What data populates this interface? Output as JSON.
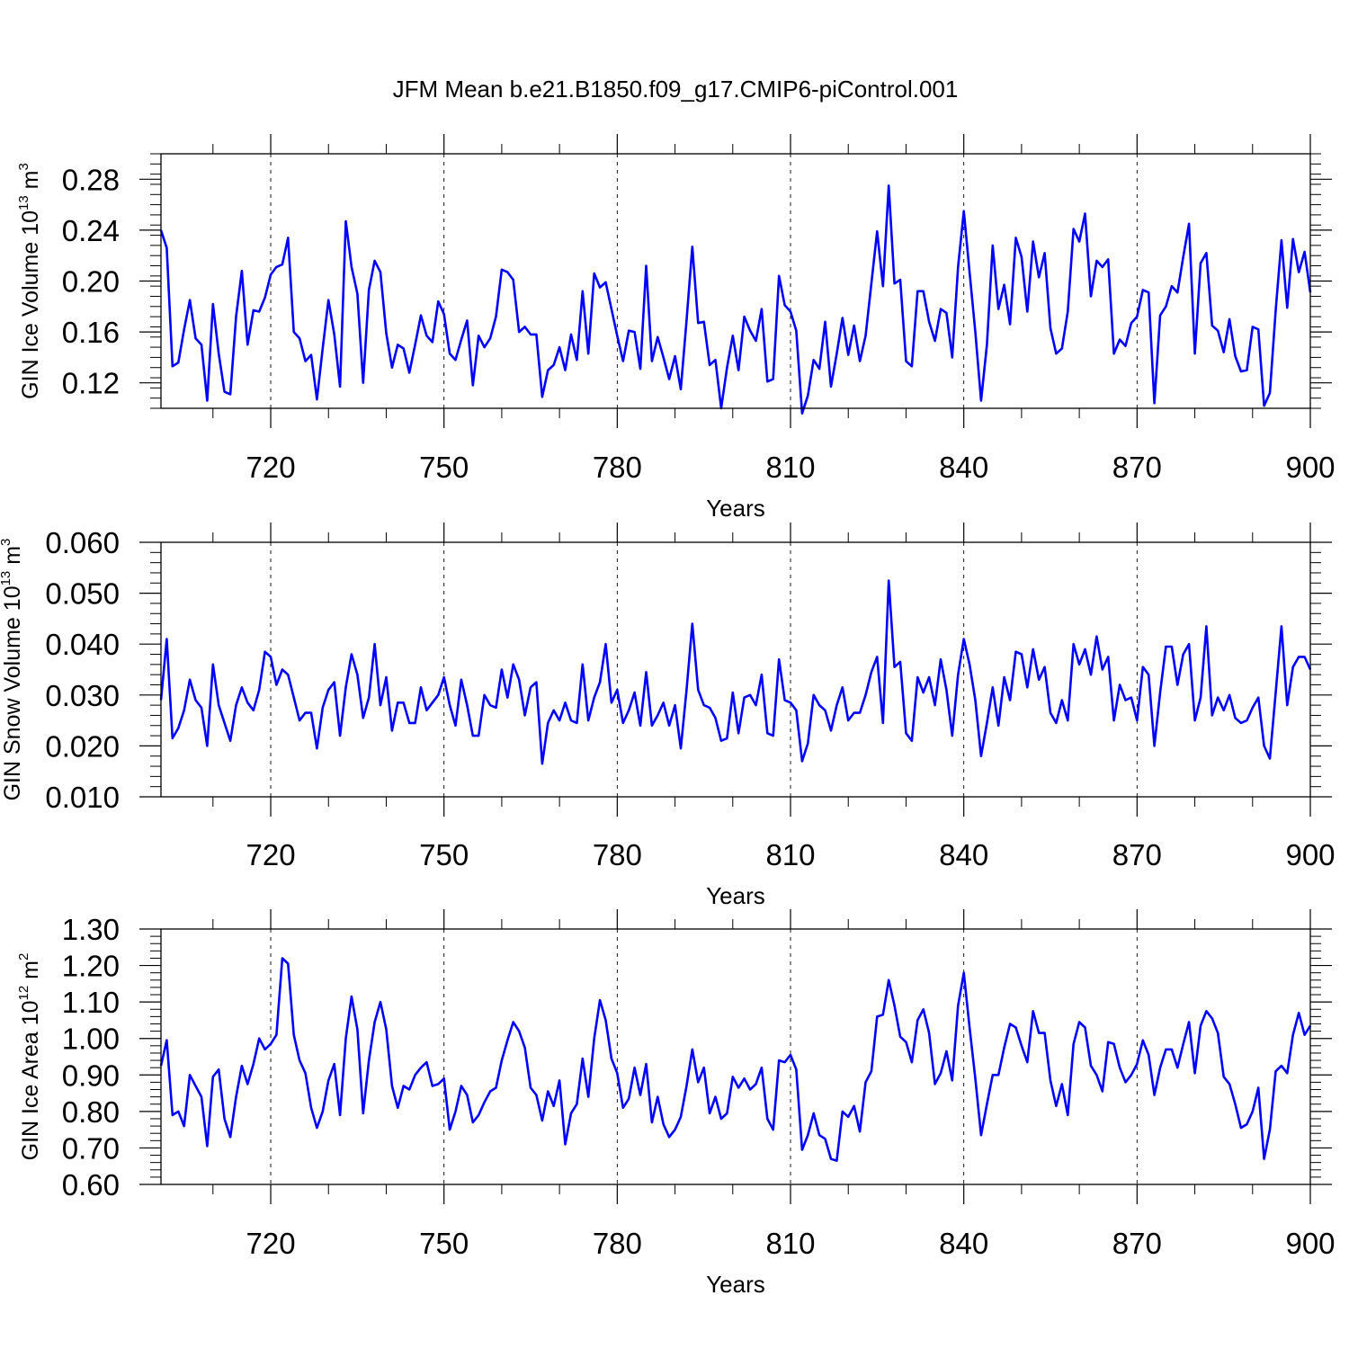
{
  "title": "JFM Mean b.e21.B1850.f09_g17.CMIP6-piControl.001",
  "chart_data": [
    {
      "type": "line",
      "ylabel": {
        "main": "GIN Ice Volume 10",
        "sup": "13",
        "unit": " m",
        "unit_sup": "3"
      },
      "xlabel": "Years",
      "xlim": [
        701,
        900
      ],
      "ylim": [
        0.1,
        0.3
      ],
      "xticks": [
        720,
        750,
        780,
        810,
        840,
        870,
        900
      ],
      "xtick_labels": [
        "720",
        "750",
        "780",
        "810",
        "840",
        "870",
        "900"
      ],
      "yticks": [
        0.12,
        0.16,
        0.2,
        0.24,
        0.28
      ],
      "ytick_labels": [
        "0.12",
        "0.16",
        "0.20",
        "0.24",
        "0.28"
      ],
      "color": "#0000ff",
      "x_start": 701,
      "values": [
        0.24,
        0.226,
        0.133,
        0.136,
        0.162,
        0.185,
        0.155,
        0.15,
        0.106,
        0.182,
        0.143,
        0.113,
        0.111,
        0.172,
        0.208,
        0.15,
        0.177,
        0.176,
        0.187,
        0.205,
        0.211,
        0.213,
        0.234,
        0.16,
        0.155,
        0.137,
        0.142,
        0.107,
        0.147,
        0.185,
        0.158,
        0.117,
        0.247,
        0.211,
        0.19,
        0.12,
        0.193,
        0.216,
        0.207,
        0.159,
        0.132,
        0.15,
        0.147,
        0.128,
        0.15,
        0.173,
        0.157,
        0.152,
        0.184,
        0.174,
        0.143,
        0.138,
        0.154,
        0.169,
        0.118,
        0.157,
        0.148,
        0.155,
        0.172,
        0.209,
        0.207,
        0.201,
        0.16,
        0.164,
        0.158,
        0.158,
        0.109,
        0.13,
        0.134,
        0.148,
        0.13,
        0.158,
        0.138,
        0.192,
        0.143,
        0.206,
        0.195,
        0.199,
        0.178,
        0.157,
        0.137,
        0.161,
        0.16,
        0.131,
        0.212,
        0.137,
        0.156,
        0.14,
        0.123,
        0.141,
        0.115,
        0.169,
        0.227,
        0.167,
        0.168,
        0.134,
        0.138,
        0.1,
        0.132,
        0.157,
        0.13,
        0.172,
        0.161,
        0.153,
        0.178,
        0.121,
        0.123,
        0.204,
        0.181,
        0.176,
        0.161,
        0.096,
        0.11,
        0.138,
        0.131,
        0.168,
        0.117,
        0.143,
        0.171,
        0.142,
        0.165,
        0.137,
        0.157,
        0.198,
        0.239,
        0.196,
        0.275,
        0.198,
        0.201,
        0.137,
        0.133,
        0.192,
        0.192,
        0.168,
        0.153,
        0.178,
        0.175,
        0.14,
        0.211,
        0.255,
        0.207,
        0.16,
        0.106,
        0.15,
        0.228,
        0.178,
        0.197,
        0.166,
        0.234,
        0.219,
        0.176,
        0.231,
        0.203,
        0.222,
        0.163,
        0.143,
        0.147,
        0.176,
        0.241,
        0.231,
        0.253,
        0.188,
        0.216,
        0.211,
        0.217,
        0.143,
        0.154,
        0.149,
        0.167,
        0.172,
        0.193,
        0.191,
        0.104,
        0.173,
        0.18,
        0.196,
        0.191,
        0.219,
        0.245,
        0.143,
        0.214,
        0.222,
        0.165,
        0.161,
        0.144,
        0.17,
        0.141,
        0.129,
        0.13,
        0.164,
        0.162,
        0.102,
        0.112,
        0.177,
        0.232,
        0.179,
        0.233,
        0.207,
        0.223,
        0.191
      ]
    },
    {
      "type": "line",
      "ylabel": {
        "main": "GIN Snow Volume 10",
        "sup": "13",
        "unit": " m",
        "unit_sup": "3"
      },
      "xlabel": "Years",
      "xlim": [
        701,
        900
      ],
      "ylim": [
        0.01,
        0.06
      ],
      "xticks": [
        720,
        750,
        780,
        810,
        840,
        870,
        900
      ],
      "xtick_labels": [
        "720",
        "750",
        "780",
        "810",
        "840",
        "870",
        "900"
      ],
      "yticks": [
        0.01,
        0.02,
        0.03,
        0.04,
        0.05,
        0.06
      ],
      "ytick_labels": [
        "0.010",
        "0.020",
        "0.030",
        "0.040",
        "0.050",
        "0.060"
      ],
      "color": "#0000ff",
      "x_start": 701,
      "values": [
        0.029,
        0.041,
        0.0215,
        0.0235,
        0.027,
        0.033,
        0.029,
        0.0275,
        0.02,
        0.036,
        0.028,
        0.0245,
        0.021,
        0.028,
        0.0315,
        0.0285,
        0.027,
        0.031,
        0.0385,
        0.0375,
        0.032,
        0.035,
        0.034,
        0.0295,
        0.025,
        0.0265,
        0.0265,
        0.0195,
        0.0275,
        0.031,
        0.0325,
        0.022,
        0.0315,
        0.038,
        0.034,
        0.0255,
        0.0295,
        0.04,
        0.028,
        0.0335,
        0.023,
        0.0285,
        0.0285,
        0.0245,
        0.0245,
        0.0315,
        0.027,
        0.0285,
        0.03,
        0.0335,
        0.028,
        0.024,
        0.033,
        0.028,
        0.022,
        0.022,
        0.03,
        0.028,
        0.0275,
        0.035,
        0.0295,
        0.036,
        0.033,
        0.026,
        0.0315,
        0.0325,
        0.0165,
        0.0245,
        0.027,
        0.025,
        0.0285,
        0.025,
        0.0245,
        0.036,
        0.025,
        0.0295,
        0.0325,
        0.04,
        0.0285,
        0.031,
        0.0245,
        0.027,
        0.0305,
        0.024,
        0.0345,
        0.024,
        0.026,
        0.0285,
        0.024,
        0.028,
        0.0195,
        0.031,
        0.044,
        0.031,
        0.028,
        0.0275,
        0.0255,
        0.021,
        0.0215,
        0.0305,
        0.0225,
        0.0295,
        0.03,
        0.028,
        0.034,
        0.0225,
        0.022,
        0.037,
        0.029,
        0.0285,
        0.027,
        0.017,
        0.0205,
        0.03,
        0.028,
        0.027,
        0.023,
        0.028,
        0.0315,
        0.025,
        0.0265,
        0.0265,
        0.03,
        0.0345,
        0.0375,
        0.0245,
        0.0525,
        0.0355,
        0.0365,
        0.0225,
        0.021,
        0.0335,
        0.0305,
        0.0335,
        0.028,
        0.037,
        0.031,
        0.022,
        0.034,
        0.041,
        0.036,
        0.029,
        0.018,
        0.0245,
        0.0315,
        0.024,
        0.0335,
        0.029,
        0.0385,
        0.038,
        0.0315,
        0.039,
        0.033,
        0.0355,
        0.0265,
        0.0245,
        0.029,
        0.025,
        0.04,
        0.036,
        0.039,
        0.034,
        0.0415,
        0.035,
        0.0375,
        0.025,
        0.032,
        0.029,
        0.0295,
        0.025,
        0.0355,
        0.034,
        0.02,
        0.0305,
        0.0395,
        0.0395,
        0.032,
        0.038,
        0.04,
        0.025,
        0.0295,
        0.0435,
        0.026,
        0.0295,
        0.027,
        0.03,
        0.0255,
        0.0245,
        0.025,
        0.0275,
        0.0295,
        0.02,
        0.0175,
        0.0305,
        0.0435,
        0.028,
        0.0355,
        0.0375,
        0.0375,
        0.035
      ]
    },
    {
      "type": "line",
      "ylabel": {
        "main": "GIN Ice Area 10",
        "sup": "12",
        "unit": " m",
        "unit_sup": "2"
      },
      "xlabel": "Years",
      "xlim": [
        701,
        900
      ],
      "ylim": [
        0.6,
        1.3
      ],
      "xticks": [
        720,
        750,
        780,
        810,
        840,
        870,
        900
      ],
      "xtick_labels": [
        "720",
        "750",
        "780",
        "810",
        "840",
        "870",
        "900"
      ],
      "yticks": [
        0.6,
        0.7,
        0.8,
        0.9,
        1.0,
        1.1,
        1.2,
        1.3
      ],
      "ytick_labels": [
        "0.60",
        "0.70",
        "0.80",
        "0.90",
        "1.00",
        "1.10",
        "1.20",
        "1.30"
      ],
      "color": "#0000ff",
      "x_start": 701,
      "values": [
        0.925,
        0.995,
        0.79,
        0.8,
        0.76,
        0.9,
        0.87,
        0.84,
        0.705,
        0.895,
        0.915,
        0.78,
        0.73,
        0.84,
        0.925,
        0.875,
        0.93,
        1.0,
        0.97,
        0.985,
        1.01,
        1.22,
        1.205,
        1.01,
        0.94,
        0.905,
        0.81,
        0.755,
        0.8,
        0.885,
        0.93,
        0.79,
        1.0,
        1.115,
        1.025,
        0.795,
        0.94,
        1.045,
        1.1,
        1.025,
        0.87,
        0.81,
        0.87,
        0.86,
        0.9,
        0.92,
        0.935,
        0.87,
        0.875,
        0.89,
        0.75,
        0.8,
        0.87,
        0.845,
        0.77,
        0.79,
        0.825,
        0.855,
        0.865,
        0.94,
        0.995,
        1.045,
        1.02,
        0.975,
        0.865,
        0.845,
        0.775,
        0.855,
        0.815,
        0.885,
        0.71,
        0.795,
        0.82,
        0.945,
        0.84,
        1.0,
        1.105,
        1.05,
        0.945,
        0.905,
        0.81,
        0.835,
        0.92,
        0.845,
        0.93,
        0.77,
        0.84,
        0.765,
        0.73,
        0.75,
        0.785,
        0.87,
        0.97,
        0.88,
        0.92,
        0.795,
        0.84,
        0.78,
        0.795,
        0.895,
        0.865,
        0.89,
        0.86,
        0.875,
        0.92,
        0.78,
        0.75,
        0.94,
        0.935,
        0.955,
        0.915,
        0.695,
        0.735,
        0.795,
        0.735,
        0.725,
        0.67,
        0.665,
        0.8,
        0.785,
        0.815,
        0.745,
        0.88,
        0.91,
        1.06,
        1.065,
        1.16,
        1.09,
        1.005,
        0.99,
        0.935,
        1.05,
        1.08,
        1.015,
        0.875,
        0.905,
        0.965,
        0.885,
        1.09,
        1.18,
        1.03,
        0.89,
        0.735,
        0.82,
        0.9,
        0.9,
        0.975,
        1.04,
        1.03,
        0.98,
        0.935,
        1.075,
        1.015,
        1.015,
        0.885,
        0.815,
        0.875,
        0.79,
        0.985,
        1.045,
        1.03,
        0.925,
        0.9,
        0.855,
        0.99,
        0.985,
        0.92,
        0.88,
        0.9,
        0.93,
        0.995,
        0.955,
        0.845,
        0.92,
        0.97,
        0.97,
        0.92,
        0.985,
        1.045,
        0.905,
        1.035,
        1.075,
        1.055,
        1.015,
        0.895,
        0.875,
        0.82,
        0.755,
        0.765,
        0.8,
        0.865,
        0.67,
        0.75,
        0.91,
        0.925,
        0.905,
        1.01,
        1.07,
        1.01,
        1.035
      ]
    }
  ]
}
